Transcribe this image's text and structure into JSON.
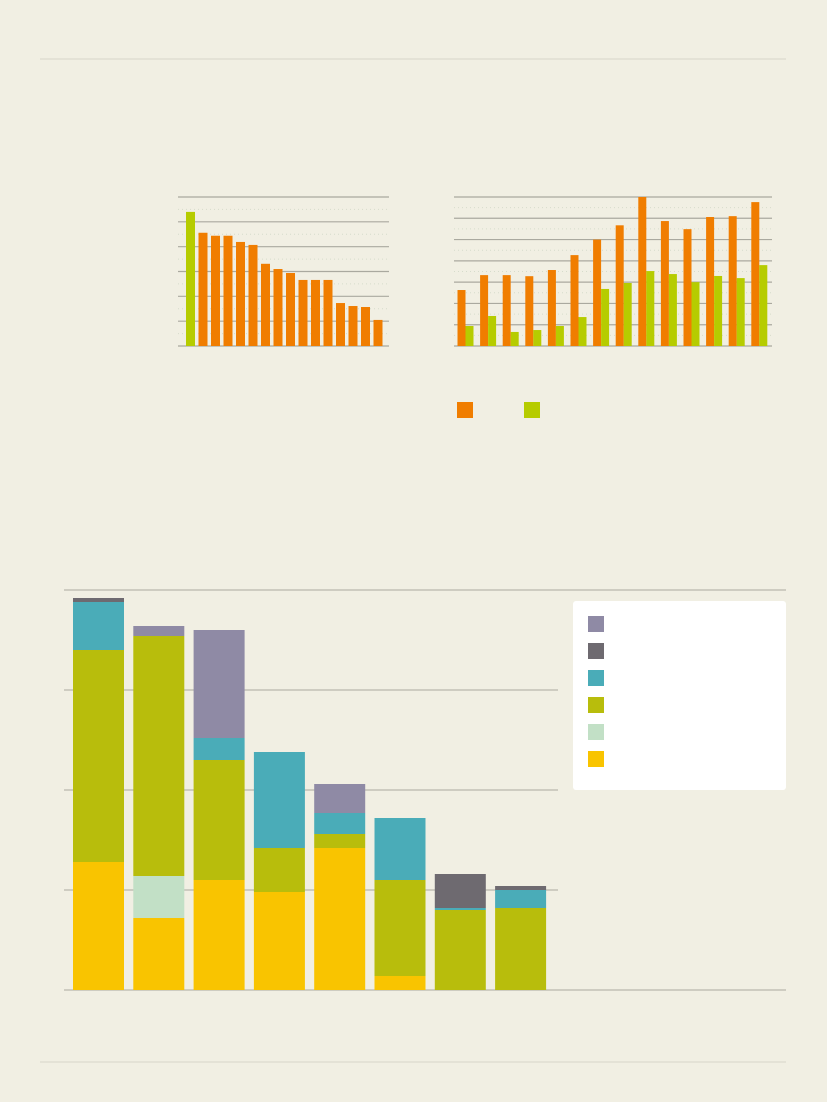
{
  "colors": {
    "background": "#f1efe3",
    "orange": "#f07d00",
    "lime": "#b6cc00",
    "yellow": "#f9c400",
    "light_green": "#c2e0c6",
    "olive": "#b8bd0c",
    "teal": "#4aacb8",
    "dark_gray": "#6e6a70",
    "purple_gray": "#8f8aa5",
    "gridline": "#aaa99f",
    "legend_bg": "#ffffff"
  },
  "chart_data": [
    {
      "type": "bar",
      "grid": true,
      "ylim": [
        0,
        6
      ],
      "values": [
        5.4,
        4.56,
        4.44,
        4.44,
        4.19,
        4.07,
        3.31,
        3.1,
        2.94,
        2.66,
        2.66,
        2.66,
        1.73,
        1.61,
        1.57,
        1.05
      ],
      "highlight_index": 0,
      "bar_colors": [
        "lime",
        "orange"
      ]
    },
    {
      "type": "bar",
      "grid": true,
      "ylim": [
        0,
        7
      ],
      "legend_placement": "bottom-left",
      "series": [
        {
          "color": "orange",
          "values": [
            2.63,
            3.33,
            3.33,
            3.28,
            3.57,
            4.27,
            5.0,
            5.67,
            7.0,
            5.87,
            5.49,
            6.06,
            6.1,
            6.76
          ]
        },
        {
          "color": "lime",
          "values": [
            0.94,
            1.41,
            0.66,
            0.75,
            0.94,
            1.36,
            2.68,
            2.96,
            3.52,
            3.38,
            3.0,
            3.29,
            3.19,
            3.8
          ]
        }
      ]
    },
    {
      "type": "bar",
      "stacked": true,
      "grid": true,
      "ylim": [
        0,
        4
      ],
      "legend_placement": "top-right",
      "legend_order": [
        "purple_gray",
        "dark_gray",
        "teal",
        "olive",
        "light_green",
        "yellow"
      ],
      "series": [
        {
          "color": "yellow",
          "values": [
            1.28,
            0.72,
            1.1,
            0.98,
            1.42,
            0.14,
            0,
            0
          ]
        },
        {
          "color": "light_green",
          "values": [
            0,
            0.42,
            0,
            0,
            0,
            0,
            0,
            0
          ]
        },
        {
          "color": "olive",
          "values": [
            2.12,
            2.4,
            1.2,
            0.44,
            0.14,
            0.96,
            0.8,
            0.82
          ]
        },
        {
          "color": "teal",
          "values": [
            0.48,
            0,
            0.22,
            0.96,
            0.21,
            0.62,
            0.02,
            0.18
          ]
        },
        {
          "color": "dark_gray",
          "values": [
            0.04,
            0,
            0,
            0,
            0,
            0,
            0.34,
            0.04
          ]
        },
        {
          "color": "purple_gray",
          "values": [
            0,
            0.1,
            1.08,
            0,
            0.29,
            0,
            0,
            0
          ]
        }
      ]
    }
  ]
}
